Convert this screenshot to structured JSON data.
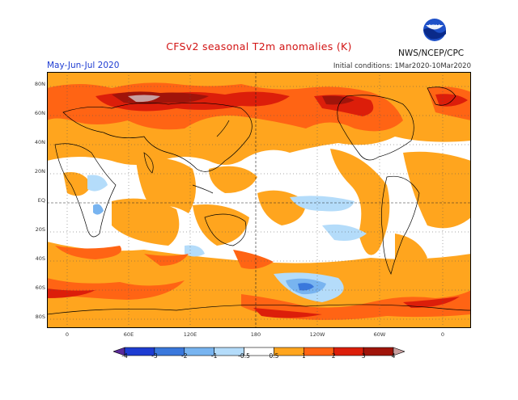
{
  "title": "CFSv2 seasonal T2m anomalies (K)",
  "period": "May-Jun-Jul 2020",
  "initial_conditions": "Initial conditions: 1Mar2020-10Mar2020",
  "agency": "NWS/NCEP/CPC",
  "logo_text": "NOAA",
  "lat_labels": [
    "80N",
    "60N",
    "40N",
    "20N",
    "EQ",
    "20S",
    "40S",
    "60S",
    "80S"
  ],
  "lon_labels": [
    "0",
    "60E",
    "120E",
    "180",
    "120W",
    "60W",
    "0"
  ],
  "colorbar": {
    "labels": [
      "-4",
      "-3",
      "-2",
      "-1",
      "-0.5",
      "0.5",
      "1",
      "2",
      "3",
      "4"
    ],
    "colors": [
      "#5a2a9a",
      "#1e3cd2",
      "#3a78dc",
      "#78b4f0",
      "#b4dcfa",
      "#ffffff",
      "#ffa51e",
      "#ff6414",
      "#dc1e0a",
      "#a0140a",
      "#c8a0a0"
    ]
  },
  "palette": {
    "ocean_neutral": "#ffffff",
    "warm_05": "#ffa51e",
    "warm_1": "#ff6414",
    "warm_2": "#dc1e0a",
    "warm_3": "#a0140a",
    "warm_4": "#c8a0a0",
    "cool_05": "#b4dcfa",
    "cool_1": "#78b4f0",
    "cool_2": "#3a78dc"
  }
}
